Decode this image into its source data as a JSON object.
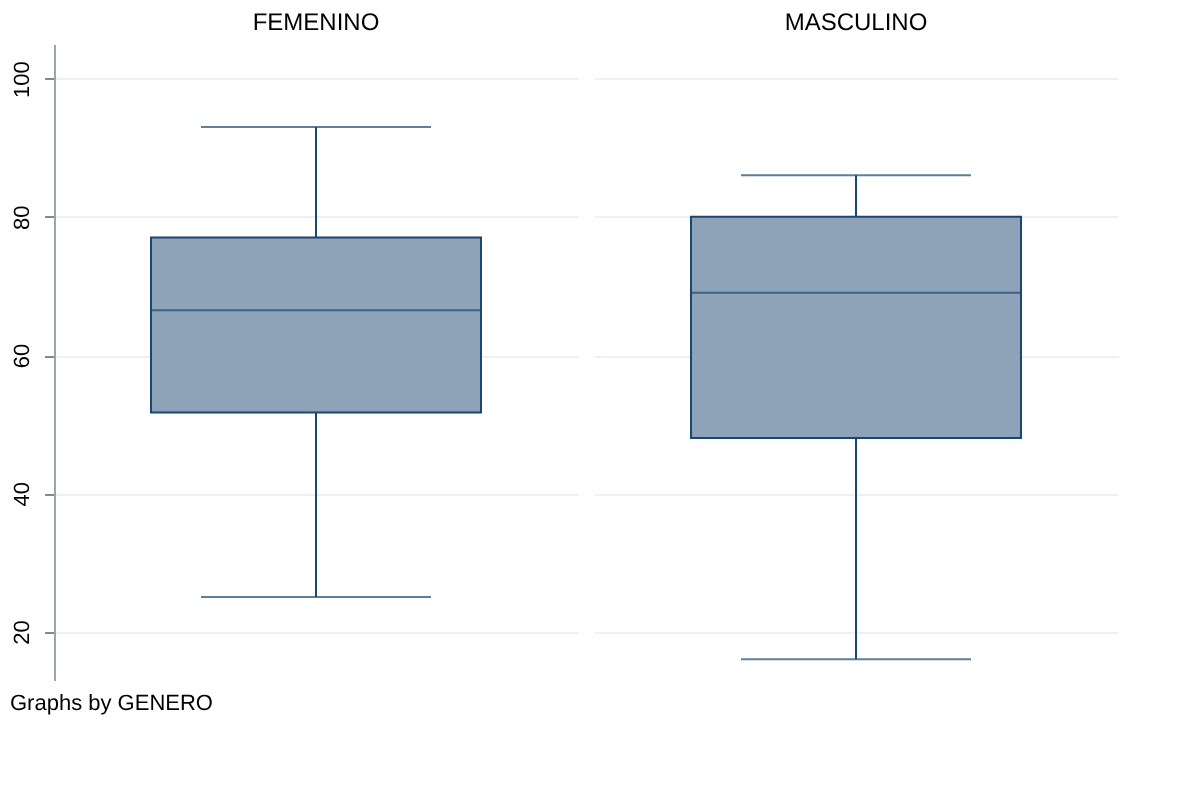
{
  "chart_data": {
    "type": "box",
    "categories": [
      "FEMENINO",
      "MASCULINO"
    ],
    "ylim": [
      13,
      105
    ],
    "yticks": [
      20,
      40,
      60,
      80,
      100
    ],
    "grid": "y",
    "annotations": [
      "Graphs by GENERO"
    ],
    "series": [
      {
        "color": "#8ea3b8",
        "boxes": [
          {
            "low": 25,
            "q1": 51.7,
            "median": 66.5,
            "q3": 77,
            "high": 93
          },
          {
            "low": 16,
            "q1": 48,
            "median": 69,
            "q3": 80,
            "high": 86
          }
        ]
      }
    ]
  }
}
